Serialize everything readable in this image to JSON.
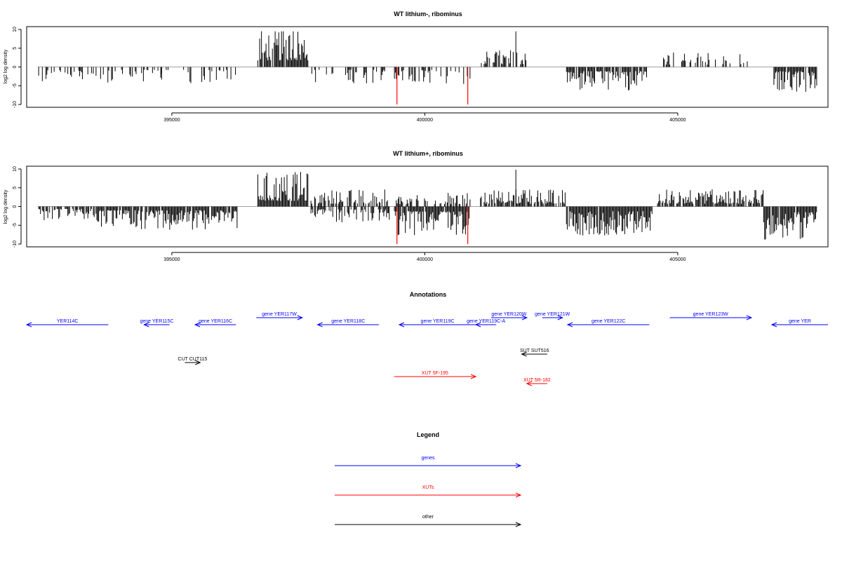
{
  "chart_data": [
    {
      "type": "bar",
      "title": "WT lithium-, ribominus",
      "ylabel": "log2 log density",
      "xlabel": "",
      "xlim": [
        392200,
        407900
      ],
      "ylim": [
        -10,
        10
      ],
      "xticks": [
        395000,
        400000,
        405000
      ],
      "yticks": [
        -10,
        -5,
        0,
        5,
        10
      ],
      "grid": false,
      "segments": [
        {
          "start": 392350,
          "end": 394800,
          "sign": -1,
          "amp": 3,
          "density": 0.35
        },
        {
          "start": 394800,
          "end": 396300,
          "sign": -1,
          "amp": 3,
          "density": 0.3
        },
        {
          "start": 396700,
          "end": 397700,
          "sign": 1,
          "amp": 7,
          "density": 0.85
        },
        {
          "start": 397750,
          "end": 399300,
          "sign": -1,
          "amp": 3,
          "density": 0.35
        },
        {
          "start": 399400,
          "end": 400900,
          "sign": -1,
          "amp": 3,
          "density": 0.45
        },
        {
          "start": 401100,
          "end": 402000,
          "sign": 1,
          "amp": 3,
          "density": 0.55
        },
        {
          "start": 402800,
          "end": 404400,
          "sign": -1,
          "amp": 4.5,
          "density": 0.85
        },
        {
          "start": 404700,
          "end": 406400,
          "sign": 1,
          "amp": 2.5,
          "density": 0.4
        },
        {
          "start": 406900,
          "end": 407750,
          "sign": -1,
          "amp": 4.5,
          "density": 0.85
        }
      ],
      "highlights": [
        {
          "x": 399450,
          "value": -10,
          "color": "#ff0000"
        },
        {
          "x": 400850,
          "value": -10,
          "color": "#ff0000"
        }
      ],
      "peaks": [
        {
          "x": 401800,
          "value": 9.5
        },
        {
          "x": 397400,
          "value": 9.5
        }
      ]
    },
    {
      "type": "bar",
      "title": "WT lithium+, ribominus",
      "ylabel": "log2 log density",
      "xlabel": "",
      "xlim": [
        392200,
        407900
      ],
      "ylim": [
        -10,
        10
      ],
      "xticks": [
        395000,
        400000,
        405000
      ],
      "yticks": [
        -10,
        -5,
        0,
        5,
        10
      ],
      "grid": false,
      "segments": [
        {
          "start": 392350,
          "end": 393500,
          "sign": -1,
          "amp": 2.5,
          "density": 0.7
        },
        {
          "start": 393500,
          "end": 396300,
          "sign": -1,
          "amp": 4,
          "density": 0.9
        },
        {
          "start": 396700,
          "end": 397700,
          "sign": 1,
          "amp": 6,
          "density": 0.95
        },
        {
          "start": 397750,
          "end": 399300,
          "sign": 1,
          "amp": 3,
          "density": 0.6
        },
        {
          "start": 397750,
          "end": 399300,
          "sign": -1,
          "amp": 3,
          "density": 0.6
        },
        {
          "start": 399400,
          "end": 400900,
          "sign": -1,
          "amp": 5,
          "density": 0.9
        },
        {
          "start": 399400,
          "end": 400900,
          "sign": 1,
          "amp": 2.5,
          "density": 0.5
        },
        {
          "start": 401100,
          "end": 402800,
          "sign": 1,
          "amp": 3,
          "density": 0.8
        },
        {
          "start": 402800,
          "end": 404500,
          "sign": -1,
          "amp": 5,
          "density": 0.95
        },
        {
          "start": 404600,
          "end": 406700,
          "sign": 1,
          "amp": 3,
          "density": 0.9
        },
        {
          "start": 406700,
          "end": 407750,
          "sign": -1,
          "amp": 6,
          "density": 0.95
        }
      ],
      "highlights": [
        {
          "x": 399450,
          "value": -10,
          "color": "#ff0000"
        },
        {
          "x": 400850,
          "value": -10,
          "color": "#ff0000"
        }
      ],
      "peaks": [
        {
          "x": 401800,
          "value": 9.8
        },
        {
          "x": 397400,
          "value": 8.5
        }
      ]
    },
    {
      "type": "annotation_track",
      "title": "Annotations",
      "xlim": [
        392200,
        407900
      ],
      "features": [
        {
          "label": "YER114C",
          "start": 392200,
          "end": 393800,
          "strand": "-",
          "kind": "gene",
          "row": 1
        },
        {
          "label": "gene YER115C",
          "start": 394500,
          "end": 395000,
          "strand": "-",
          "kind": "gene",
          "row": 1
        },
        {
          "label": "gene YER116C",
          "start": 395500,
          "end": 396300,
          "strand": "-",
          "kind": "gene",
          "row": 1
        },
        {
          "label": "gene YER117W",
          "start": 396700,
          "end": 397600,
          "strand": "+",
          "kind": "gene",
          "row": 0
        },
        {
          "label": "gene YER118C",
          "start": 397900,
          "end": 399100,
          "strand": "-",
          "kind": "gene",
          "row": 1
        },
        {
          "label": "gene YER119C",
          "start": 399500,
          "end": 401000,
          "strand": "-",
          "kind": "gene",
          "row": 1
        },
        {
          "label": "gene YER119C-A",
          "start": 401000,
          "end": 401400,
          "strand": "-",
          "kind": "gene",
          "row": 1
        },
        {
          "label": "gene YER120W",
          "start": 401300,
          "end": 402000,
          "strand": "+",
          "kind": "gene",
          "row": 0
        },
        {
          "label": "gene YER121W",
          "start": 402300,
          "end": 402700,
          "strand": "+",
          "kind": "gene",
          "row": 0
        },
        {
          "label": "gene YER122C",
          "start": 402800,
          "end": 404400,
          "strand": "-",
          "kind": "gene",
          "row": 1
        },
        {
          "label": "gene YER123W",
          "start": 404800,
          "end": 406400,
          "strand": "+",
          "kind": "gene",
          "row": 0
        },
        {
          "label": "gene YER",
          "start": 406800,
          "end": 407900,
          "strand": "-",
          "kind": "gene",
          "row": 1
        },
        {
          "label": "SUT SUT516",
          "start": 401900,
          "end": 402400,
          "strand": "-",
          "kind": "other",
          "row": 3
        },
        {
          "label": "CUT CUT115",
          "start": 395300,
          "end": 395600,
          "strand": "+",
          "kind": "other",
          "row": 4
        },
        {
          "label": "XUT 5F-195",
          "start": 399400,
          "end": 401000,
          "strand": "+",
          "kind": "xut",
          "row": 5
        },
        {
          "label": "XUT 5R-182",
          "start": 402000,
          "end": 402400,
          "strand": "-",
          "kind": "xut",
          "row": 6
        }
      ]
    },
    {
      "type": "legend",
      "title": "Legend",
      "entries": [
        {
          "label": "genes",
          "color": "#0000ff"
        },
        {
          "label": "XUTs",
          "color": "#ff0000"
        },
        {
          "label": "other",
          "color": "#000000"
        }
      ]
    }
  ],
  "colors": {
    "gene": "#0000ff",
    "xut": "#ff0000",
    "other": "#000000",
    "bars": "#000000",
    "baseline": "#808080"
  }
}
